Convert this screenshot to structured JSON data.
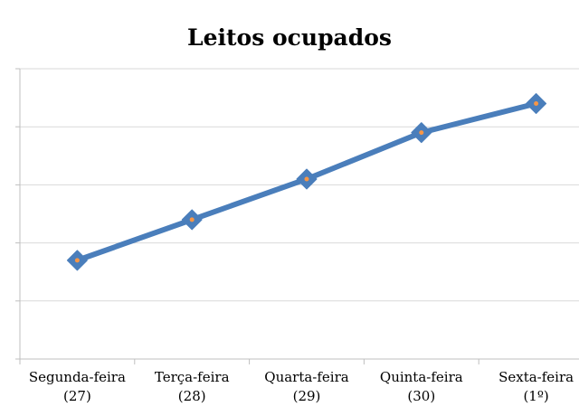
{
  "chart_data": {
    "type": "line",
    "title": "Leitos ocupados",
    "categories": [
      [
        "Segunda-feira",
        "(27)"
      ],
      [
        "Terça-feira",
        "(28)"
      ],
      [
        "Quarta-feira",
        "(29)"
      ],
      [
        "Quinta-feira",
        "(30)"
      ],
      [
        "Sexta-feira",
        "(1º)"
      ]
    ],
    "series": [
      {
        "values": [
          17,
          24,
          31,
          39,
          44
        ]
      }
    ],
    "xlabel": "",
    "ylabel": "",
    "ylim": [
      0,
      50
    ],
    "yticks": [
      0,
      10,
      20,
      30,
      40,
      50
    ],
    "grid": true,
    "legend": "none",
    "colors": {
      "line": "#4a7ebb",
      "marker": "#4a7ebb",
      "marker_center": "#f79646",
      "grid": "#d9d9d9",
      "axis": "#bfbfbf"
    }
  }
}
